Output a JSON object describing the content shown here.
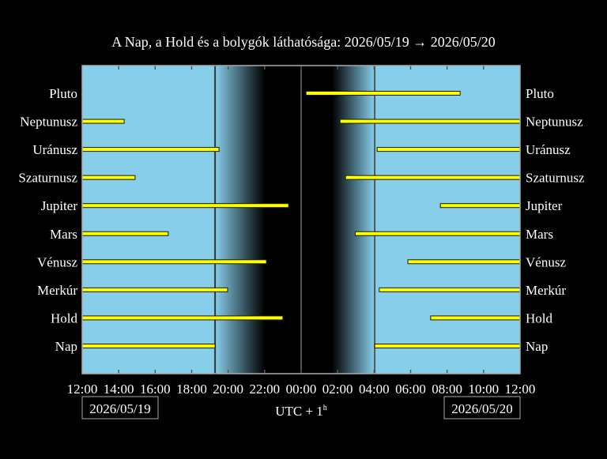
{
  "chart_data": {
    "type": "bar",
    "subtype": "timeline",
    "title": "A Nap, a Hold és a bolygók láthatósága: 2026/05/19 → 2026/05/20",
    "xlabel": "UTC + 1ʰ",
    "xlabel_main": "UTC + 1",
    "xlabel_sup": "h",
    "date_left": "2026/05/19",
    "date_right": "2026/05/20",
    "x_range": [
      "2026/05/19 12:00",
      "2026/05/20 12:00"
    ],
    "x_ticks": [
      "12:00",
      "14:00",
      "16:00",
      "18:00",
      "20:00",
      "22:00",
      "00:00",
      "02:00",
      "04:00",
      "06:00",
      "08:00",
      "10:00",
      "12:00"
    ],
    "sunset": "2026/05/19 19:17",
    "sunrise": "2026/05/20 04:02",
    "midnight": "2026/05/20 00:00",
    "colors": {
      "day": "#87ceeb",
      "night": "#000000",
      "bar": "#ffff00",
      "bar_edge": "#1a1a00",
      "text": "#ffffff"
    },
    "categories": [
      "Pluto",
      "Neptunusz",
      "Uránusz",
      "Szaturnusz",
      "Jupiter",
      "Mars",
      "Vénusz",
      "Merkúr",
      "Hold",
      "Nap"
    ],
    "series": [
      {
        "label": "Pluto",
        "segments": [
          [
            "2026/05/20 00:16",
            "2026/05/20 08:43"
          ]
        ]
      },
      {
        "label": "Neptunusz",
        "segments": [
          [
            "2026/05/19 12:00",
            "2026/05/19 14:18"
          ],
          [
            "2026/05/20 02:08",
            "2026/05/20 12:00"
          ]
        ]
      },
      {
        "label": "Uránusz",
        "segments": [
          [
            "2026/05/19 12:00",
            "2026/05/19 19:30"
          ],
          [
            "2026/05/20 04:10",
            "2026/05/20 12:00"
          ]
        ]
      },
      {
        "label": "Szaturnusz",
        "segments": [
          [
            "2026/05/19 12:00",
            "2026/05/19 14:54"
          ],
          [
            "2026/05/20 02:26",
            "2026/05/20 12:00"
          ]
        ]
      },
      {
        "label": "Jupiter",
        "segments": [
          [
            "2026/05/19 12:00",
            "2026/05/19 23:19"
          ],
          [
            "2026/05/20 07:38",
            "2026/05/20 12:00"
          ]
        ]
      },
      {
        "label": "Mars",
        "segments": [
          [
            "2026/05/19 12:00",
            "2026/05/19 16:43"
          ],
          [
            "2026/05/20 02:58",
            "2026/05/20 12:00"
          ]
        ]
      },
      {
        "label": "Vénusz",
        "segments": [
          [
            "2026/05/19 12:00",
            "2026/05/19 22:06"
          ],
          [
            "2026/05/20 05:51",
            "2026/05/20 12:00"
          ]
        ]
      },
      {
        "label": "Merkúr",
        "segments": [
          [
            "2026/05/19 12:00",
            "2026/05/19 19:58"
          ],
          [
            "2026/05/20 04:17",
            "2026/05/20 12:00"
          ]
        ]
      },
      {
        "label": "Hold",
        "segments": [
          [
            "2026/05/19 12:00",
            "2026/05/19 23:00"
          ],
          [
            "2026/05/20 07:06",
            "2026/05/20 12:00"
          ]
        ]
      },
      {
        "label": "Nap",
        "segments": [
          [
            "2026/05/19 12:00",
            "2026/05/19 19:17"
          ],
          [
            "2026/05/20 04:02",
            "2026/05/20 12:00"
          ]
        ]
      }
    ]
  }
}
